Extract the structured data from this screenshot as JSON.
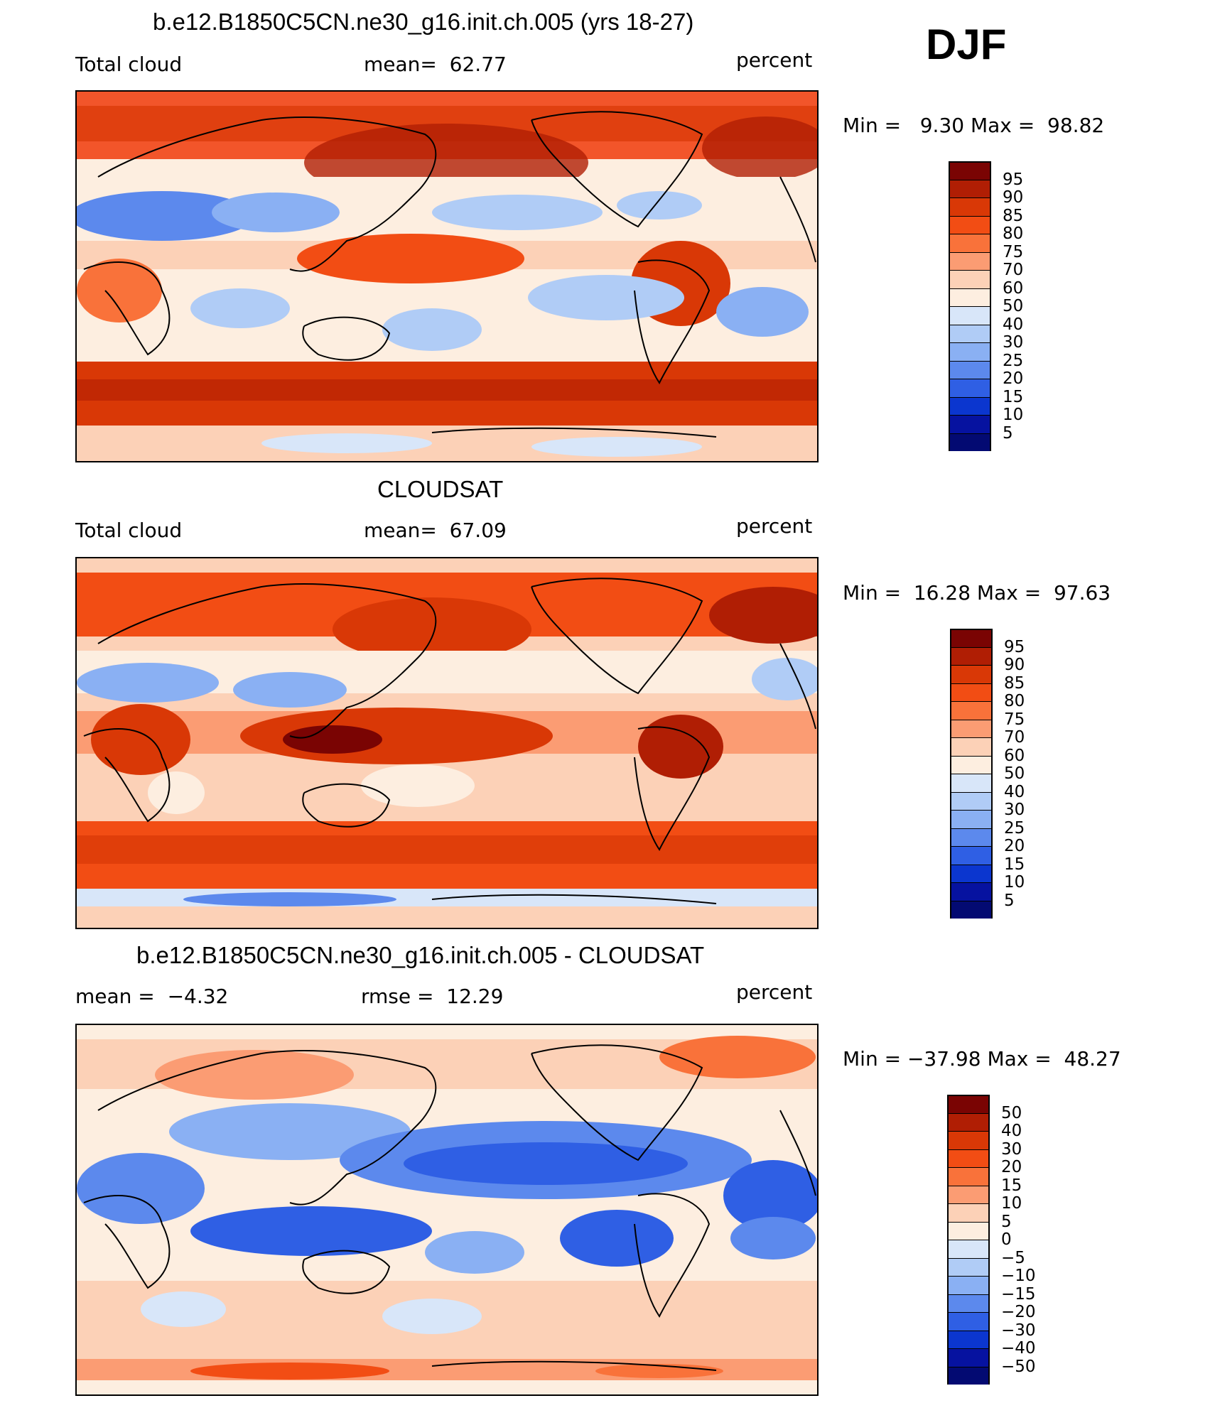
{
  "season": "DJF",
  "panels": [
    {
      "title": "b.e12.B1850C5CN.ne30_g16.init.ch.005 (yrs 18-27)",
      "left_label": "Total cloud",
      "center_label": "mean=  62.77",
      "right_label": "percent",
      "minmax": "Min =   9.30 Max =  98.82",
      "colorbar_labels": [
        "95",
        "90",
        "85",
        "80",
        "75",
        "70",
        "60",
        "50",
        "40",
        "30",
        "25",
        "20",
        "15",
        "10",
        "5"
      ]
    },
    {
      "title": "CLOUDSAT",
      "left_label": "Total cloud",
      "center_label": "mean=  67.09",
      "right_label": "percent",
      "minmax": "Min =  16.28 Max =  97.63",
      "colorbar_labels": [
        "95",
        "90",
        "85",
        "80",
        "75",
        "70",
        "60",
        "50",
        "40",
        "30",
        "25",
        "20",
        "15",
        "10",
        "5"
      ]
    },
    {
      "title": "b.e12.B1850C5CN.ne30_g16.init.ch.005 - CLOUDSAT",
      "left_label": "mean =  −4.32",
      "center_label": "rmse =  12.29",
      "right_label": "percent",
      "minmax": "Min = −37.98 Max =  48.27",
      "colorbar_labels": [
        "50",
        "40",
        "30",
        "20",
        "15",
        "10",
        "5",
        "0",
        "−5",
        "−10",
        "−15",
        "−20",
        "−30",
        "−40",
        "−50"
      ]
    }
  ],
  "colors": {
    "colorbar": [
      "#7a0403",
      "#b01e04",
      "#d93806",
      "#f24d14",
      "#f9723a",
      "#fb9c73",
      "#fcd1b7",
      "#fdeee0",
      "#d8e6f9",
      "#b0ccf6",
      "#8ab0f3",
      "#5c89ed",
      "#2f5fe4",
      "#0b36cf",
      "#0612a0",
      "#030a72"
    ]
  }
}
